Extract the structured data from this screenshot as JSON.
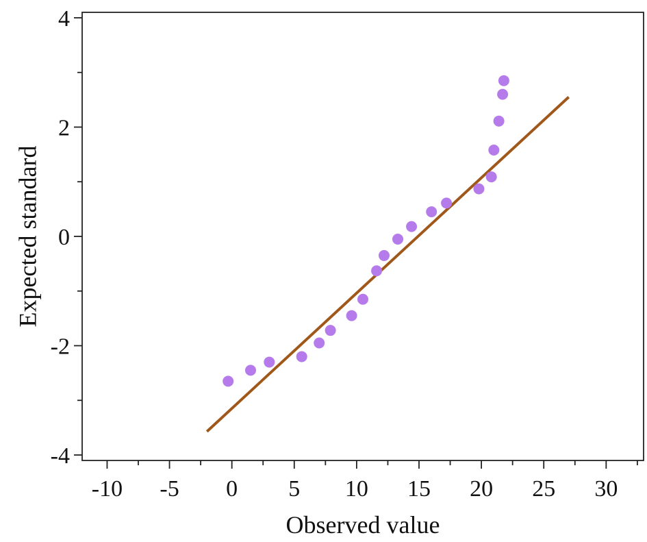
{
  "chart_data": {
    "type": "scatter",
    "xlabel": "Observed value",
    "ylabel": "Expected standard",
    "xlim": [
      -12,
      33
    ],
    "ylim": [
      -4.1,
      4.1
    ],
    "x_ticks": [
      -10,
      -5,
      0,
      5,
      10,
      15,
      20,
      25,
      30
    ],
    "y_ticks": [
      -4,
      -2,
      0,
      2,
      4
    ],
    "grid": false,
    "legend": "none",
    "colors": {
      "points": "#b57bea",
      "fit_line": "#a0581a",
      "axes": "#222222"
    },
    "series": [
      {
        "points": [
          {
            "x": -0.3,
            "y": -2.65
          },
          {
            "x": 1.5,
            "y": -2.45
          },
          {
            "x": 3.0,
            "y": -2.3
          },
          {
            "x": 5.6,
            "y": -2.2
          },
          {
            "x": 7.0,
            "y": -1.95
          },
          {
            "x": 7.9,
            "y": -1.72
          },
          {
            "x": 9.6,
            "y": -1.45
          },
          {
            "x": 10.5,
            "y": -1.15
          },
          {
            "x": 11.6,
            "y": -0.63
          },
          {
            "x": 12.2,
            "y": -0.35
          },
          {
            "x": 13.3,
            "y": -0.05
          },
          {
            "x": 14.4,
            "y": 0.18
          },
          {
            "x": 16.0,
            "y": 0.45
          },
          {
            "x": 17.2,
            "y": 0.61
          },
          {
            "x": 19.8,
            "y": 0.87
          },
          {
            "x": 20.8,
            "y": 1.09
          },
          {
            "x": 21.0,
            "y": 1.58
          },
          {
            "x": 21.4,
            "y": 2.11
          },
          {
            "x": 21.7,
            "y": 2.6
          },
          {
            "x": 21.8,
            "y": 2.85
          }
        ]
      }
    ],
    "fit_line": {
      "x": [
        -2.0,
        27.0
      ],
      "y": [
        -3.57,
        2.55
      ]
    }
  }
}
